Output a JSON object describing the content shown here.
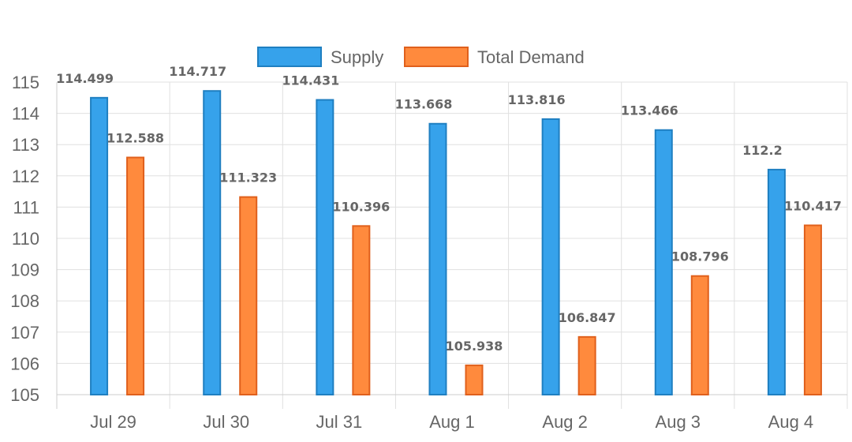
{
  "chart_data": {
    "type": "bar",
    "categories": [
      "Jul 29",
      "Jul 30",
      "Jul 31",
      "Aug 1",
      "Aug 2",
      "Aug 3",
      "Aug 4"
    ],
    "series": [
      {
        "name": "Supply",
        "values": [
          114.499,
          114.717,
          114.431,
          113.668,
          113.816,
          113.466,
          112.2
        ],
        "labels": [
          "114.499",
          "114.717",
          "114.431",
          "113.668",
          "113.816",
          "113.466",
          "112.2"
        ],
        "fill": "#36a2eb",
        "stroke": "#1f7fc1"
      },
      {
        "name": "Total Demand",
        "values": [
          112.588,
          111.323,
          110.396,
          105.938,
          106.847,
          108.796,
          110.417
        ],
        "labels": [
          "112.588",
          "111.323",
          "110.396",
          "105.938",
          "106.847",
          "108.796",
          "110.417"
        ],
        "fill": "#ff8a3d",
        "stroke": "#e0601c"
      }
    ],
    "ylim": [
      105,
      115
    ],
    "yticks": [
      "105",
      "106",
      "107",
      "108",
      "109",
      "110",
      "111",
      "112",
      "113",
      "114",
      "115"
    ],
    "grid": true,
    "legend_position": "top-center"
  }
}
